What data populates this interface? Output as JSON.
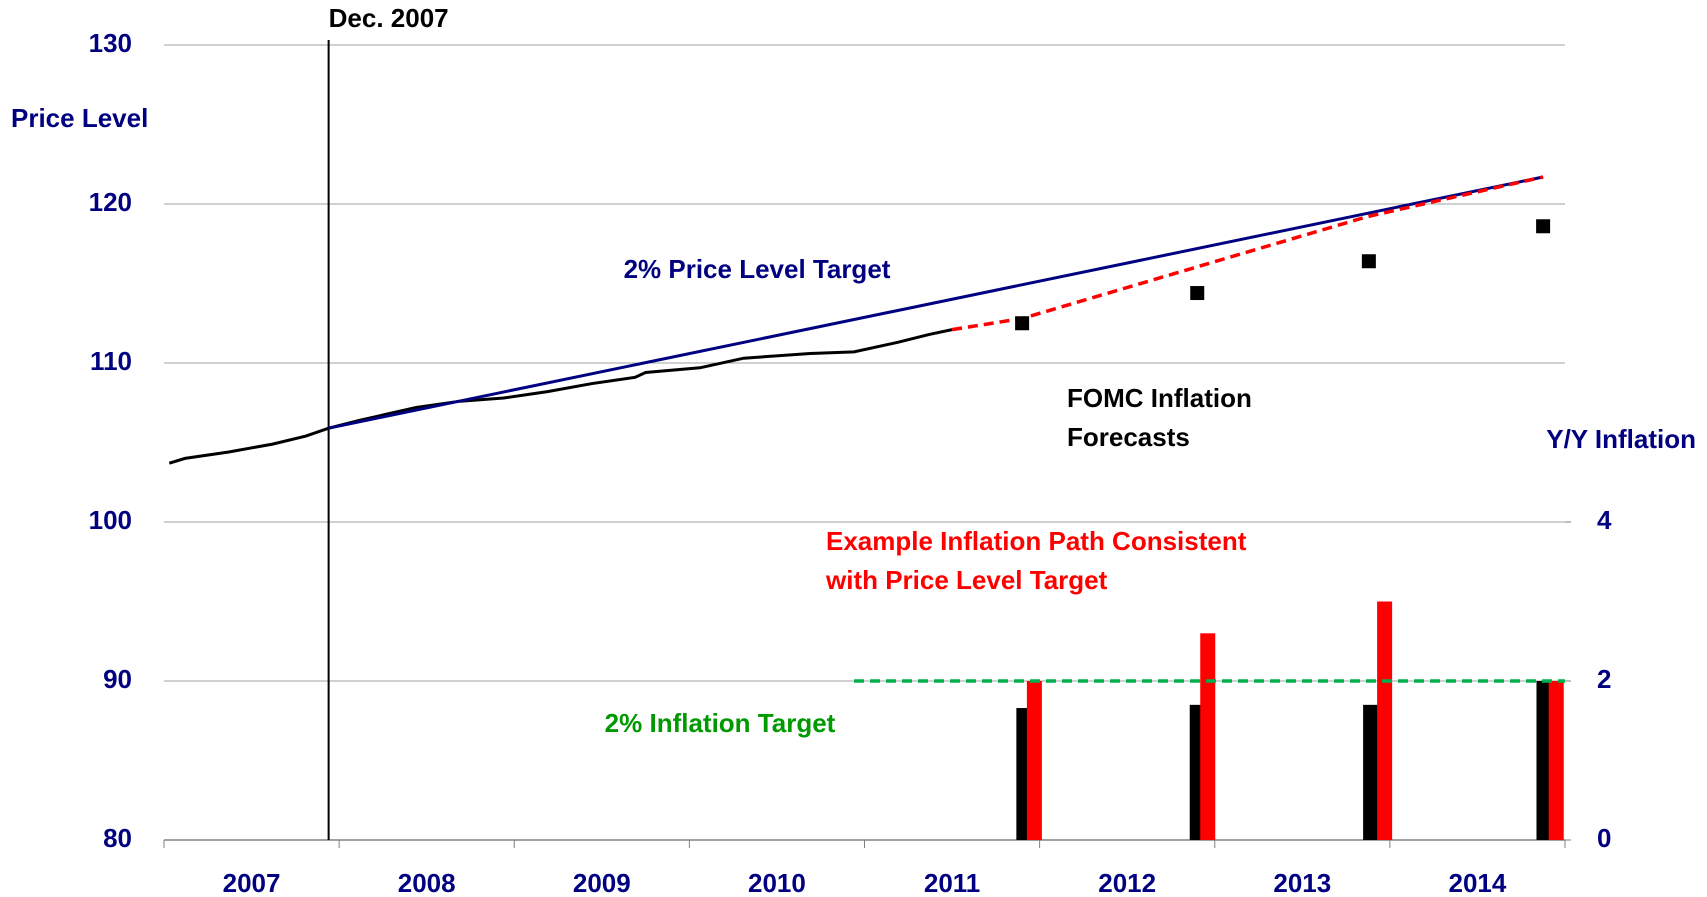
{
  "chart_data": {
    "type": "combo",
    "categories": [
      "2007",
      "2008",
      "2009",
      "2010",
      "2011",
      "2012",
      "2013",
      "2014"
    ],
    "xlim": [
      2007,
      2015
    ],
    "ylim": [
      80,
      130
    ],
    "yticks": [
      80,
      90,
      100,
      110,
      120,
      130
    ],
    "y2lim": [
      0,
      10
    ],
    "y2ticks": [
      0,
      2,
      4
    ],
    "grid": true,
    "axis_labels": {
      "y": "Price Level",
      "y2": "Y/Y Inflation"
    },
    "reference_line": {
      "label": "Dec. 2007",
      "x": 2007.94,
      "color": "#000000"
    },
    "annotations": [
      {
        "lines": [
          "2% Price Level Target"
        ],
        "color": "#000080"
      },
      {
        "lines": [
          "FOMC Inflation",
          "Forecasts"
        ],
        "color": "#000000"
      },
      {
        "lines": [
          "Example Inflation Path Consistent",
          "with Price Level Target"
        ],
        "color": "#ff0000"
      },
      {
        "lines": [
          "2% Inflation Target"
        ],
        "color": "#009900"
      }
    ],
    "series": [
      {
        "type": "line",
        "color": "#000000",
        "x": [
          2007.03,
          2007.12,
          2007.37,
          2007.62,
          2007.81,
          2007.94,
          2008.12,
          2008.44,
          2008.69,
          2008.94,
          2009.19,
          2009.44,
          2009.69,
          2009.75,
          2010.06,
          2010.31,
          2010.69,
          2010.94,
          2011.19,
          2011.37,
          2011.5
        ],
        "values": [
          103.7,
          104.0,
          104.4,
          104.9,
          105.4,
          105.9,
          106.4,
          107.2,
          107.6,
          107.8,
          108.2,
          108.7,
          109.1,
          109.4,
          109.7,
          110.3,
          110.6,
          110.7,
          111.3,
          111.8,
          112.1
        ]
      },
      {
        "type": "line",
        "color": "#000080",
        "x": [
          2007.94,
          2014.875
        ],
        "values": [
          105.9,
          121.7
        ]
      },
      {
        "type": "line",
        "dash": true,
        "color": "#ff0000",
        "x": [
          2011.5,
          2011.9,
          2013.87,
          2014.875
        ],
        "values": [
          112.1,
          112.8,
          119.2,
          121.7
        ]
      },
      {
        "type": "scatter",
        "color": "#000000",
        "x": [
          2011.9,
          2012.9,
          2013.88,
          2014.875
        ],
        "values": [
          112.5,
          114.4,
          116.4,
          118.6
        ]
      },
      {
        "type": "bar",
        "axis": "y2",
        "color": "#000000",
        "x": [
          2011.91,
          2012.9,
          2013.89,
          2014.88
        ],
        "values": [
          1.66,
          1.7,
          1.7,
          2.0
        ]
      },
      {
        "type": "bar",
        "axis": "y2",
        "color": "#ff0000",
        "x": [
          2011.97,
          2012.96,
          2013.97,
          2014.95
        ],
        "values": [
          2.0,
          2.6,
          3.0,
          2.0
        ]
      },
      {
        "type": "line",
        "axis": "y2",
        "dash": true,
        "color": "#00b050",
        "x": [
          2010.94,
          2015
        ],
        "values": [
          2,
          2
        ]
      }
    ]
  }
}
